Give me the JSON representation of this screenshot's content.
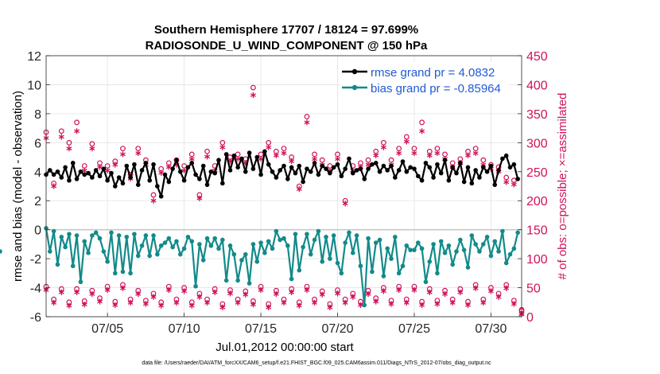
{
  "chart_data": {
    "type": "line",
    "title": "Southern Hemisphere 17707 / 18124 = 97.699%",
    "subtitle": "RADIOSONDE_U_WIND_COMPONENT @ 150 hPa",
    "xlabel": "Jul.01,2012 00:00:00 start",
    "ylabel": "rmse and bias (model - observation)",
    "ylabel_right": "# of obs: o=possible; ×=assimilated",
    "footnote": "data file: /Users/raeder/DAI/ATM_forcXX/CAM6_setup/f.e21.FHIST_BGC.f09_025.CAM6assim.011/Diags_NTrS_2012-07/obs_diag_output.nc",
    "x_range": [
      1,
      32
    ],
    "x_tick_values": [
      5,
      10,
      15,
      20,
      25,
      30
    ],
    "x_tick_labels": [
      "07/05",
      "07/10",
      "07/15",
      "07/20",
      "07/25",
      "07/30"
    ],
    "ylim": [
      -6,
      12
    ],
    "y_ticks": [
      -6,
      -4,
      -2,
      0,
      2,
      4,
      6,
      8,
      10,
      12
    ],
    "y2lim": [
      0,
      450
    ],
    "y2_ticks": [
      0,
      50,
      100,
      150,
      200,
      250,
      300,
      350,
      400,
      450
    ],
    "grid": true,
    "zero_line": true,
    "legend_position": "top-right",
    "colors": {
      "rmse": "#000000",
      "bias": "#138a8a",
      "obs": "#d0125a",
      "legend_text": "#1f5ad6",
      "grid": "#e3e3e3",
      "zero_line": "#c8c8c8"
    },
    "series": [
      {
        "name": "rmse grand pr = 4.0832",
        "color": "#000000",
        "x": [
          1.0,
          1.25,
          1.5,
          1.75,
          2.0,
          2.25,
          2.5,
          2.75,
          3.0,
          3.25,
          3.5,
          3.75,
          4.0,
          4.25,
          4.5,
          4.75,
          5.0,
          5.25,
          5.5,
          5.75,
          6.0,
          6.25,
          6.5,
          6.75,
          7.0,
          7.25,
          7.5,
          7.75,
          8.0,
          8.25,
          8.5,
          8.75,
          9.0,
          9.25,
          9.5,
          9.75,
          10.0,
          10.25,
          10.5,
          10.75,
          11.0,
          11.25,
          11.5,
          11.75,
          12.0,
          12.25,
          12.5,
          12.75,
          13.0,
          13.25,
          13.5,
          13.75,
          14.0,
          14.25,
          14.5,
          14.75,
          15.0,
          15.25,
          15.5,
          15.75,
          16.0,
          16.25,
          16.5,
          16.75,
          17.0,
          17.25,
          17.5,
          17.75,
          18.0,
          18.25,
          18.5,
          18.75,
          19.0,
          19.25,
          19.5,
          19.75,
          20.0,
          20.25,
          20.5,
          20.75,
          21.0,
          21.25,
          21.5,
          21.75,
          22.0,
          22.25,
          22.5,
          22.75,
          23.0,
          23.25,
          23.5,
          23.75,
          24.0,
          24.25,
          24.5,
          24.75,
          25.0,
          25.25,
          25.5,
          25.75,
          26.0,
          26.25,
          26.5,
          26.75,
          27.0,
          27.25,
          27.5,
          27.75,
          28.0,
          28.25,
          28.5,
          28.75,
          29.0,
          29.25,
          29.5,
          29.75,
          30.0,
          30.25,
          30.5,
          30.75,
          31.0,
          31.25,
          31.5,
          31.75
        ],
        "values": [
          3.8,
          4.1,
          3.8,
          4.0,
          3.6,
          4.3,
          3.4,
          4.6,
          3.5,
          4.0,
          3.8,
          3.9,
          3.6,
          4.1,
          3.7,
          4.2,
          3.4,
          3.9,
          3.0,
          3.6,
          3.2,
          4.4,
          3.6,
          4.5,
          3.1,
          4.1,
          4.6,
          3.4,
          4.5,
          3.0,
          2.3,
          3.8,
          3.3,
          4.2,
          4.8,
          4.0,
          3.4,
          4.3,
          4.6,
          3.8,
          3.5,
          4.4,
          3.1,
          4.0,
          3.9,
          4.8,
          3.2,
          5.2,
          4.1,
          5.1,
          4.3,
          4.9,
          4.0,
          5.3,
          4.2,
          5.0,
          3.8,
          5.4,
          4.5,
          4.0,
          3.6,
          4.1,
          4.4,
          3.5,
          4.3,
          3.9,
          4.4,
          3.3,
          4.2,
          4.0,
          4.6,
          3.8,
          4.4,
          4.2,
          3.9,
          4.3,
          4.5,
          3.7,
          4.2,
          4.9,
          3.9,
          4.1,
          4.2,
          3.5,
          4.2,
          4.5,
          4.6,
          4.0,
          4.4,
          4.1,
          4.4,
          3.6,
          4.1,
          4.7,
          4.0,
          4.3,
          4.2,
          3.7,
          3.4,
          4.6,
          4.3,
          3.6,
          4.5,
          3.9,
          4.8,
          3.4,
          4.3,
          3.9,
          4.6,
          3.3,
          4.3,
          3.2,
          4.1,
          3.6,
          4.3,
          4.0,
          4.4,
          3.1,
          4.1,
          4.9,
          5.1,
          4.3,
          4.5,
          3.5
        ],
        "x_display_note": "",
        "points_x": [
          1.0,
          1.25,
          1.5,
          1.75,
          2.0,
          2.25,
          2.5,
          2.75,
          3.0,
          3.25,
          3.5,
          3.75,
          4.0,
          4.25,
          4.5,
          4.75,
          5.0,
          5.25,
          5.5,
          5.75,
          6.0,
          6.25,
          6.5,
          6.75,
          7.0,
          7.25,
          7.5,
          7.75,
          8.0,
          8.25,
          8.5,
          8.75,
          9.0,
          9.25,
          9.5,
          9.75,
          10.0,
          10.25,
          10.5,
          10.75,
          11.0,
          11.25,
          11.5,
          11.75,
          12.0,
          12.25,
          12.5,
          12.75,
          13.0,
          13.25,
          13.5,
          13.75,
          14.0,
          14.25,
          14.5,
          14.75,
          15.0,
          15.25,
          15.5,
          15.75,
          16.0,
          16.25,
          16.5,
          16.75,
          17.0,
          17.25,
          17.5,
          17.75,
          18.0,
          18.25,
          18.5,
          18.75,
          19.0,
          19.25,
          19.5,
          19.75,
          20.0,
          20.25,
          20.5,
          20.75,
          21.0,
          21.25,
          21.5,
          21.75,
          22.0,
          22.25,
          22.5,
          22.75,
          23.0,
          23.25,
          23.5,
          23.75,
          24.0,
          24.25,
          24.5,
          24.75,
          25.0,
          25.25,
          25.5,
          25.75,
          26.0,
          26.25,
          26.5,
          26.75,
          27.0,
          27.25,
          27.5,
          27.75,
          28.0,
          28.25,
          28.5,
          28.75,
          29.0,
          29.25,
          29.5,
          29.75,
          30.0,
          30.25,
          30.5,
          30.75,
          31.0,
          31.25,
          31.5,
          31.75
        ]
      },
      {
        "name": "bias grand pr = -0.85964",
        "color": "#138a8a",
        "values": [
          0.1,
          -1.5,
          -0.1,
          -2.4,
          -0.5,
          -1.2,
          -0.3,
          -2.5,
          -0.4,
          -3.6,
          -0.8,
          -1.6,
          -0.4,
          -0.2,
          -0.6,
          -1.5,
          -2.2,
          -0.2,
          -3.0,
          -0.4,
          -2.9,
          -0.5,
          -3.0,
          -0.3,
          -1.8,
          -1.1,
          -0.4,
          -1.8,
          -0.4,
          -1.7,
          -1.1,
          -0.9,
          -0.6,
          -1.2,
          -0.8,
          -1.7,
          -1.3,
          -0.5,
          -0.8,
          -3.9,
          -1.0,
          -2.1,
          -0.6,
          -1.1,
          -0.6,
          -1.3,
          -0.7,
          -3.5,
          -1.1,
          -1.7,
          -3.5,
          -2.1,
          -1.7,
          -3.7,
          -1.0,
          -2.2,
          -0.9,
          -1.6,
          -0.8,
          -1.3,
          -0.1,
          -0.7,
          -0.6,
          -1.1,
          -3.4,
          -0.3,
          -2.8,
          -1.2,
          -0.3,
          -1.7,
          -0.7,
          -0.1,
          -2.2,
          -0.5,
          -2.0,
          -0.4,
          -2.3,
          -3.0,
          -0.9,
          -0.2,
          -1.6,
          -0.4,
          -2.5,
          -5.2,
          -0.6,
          -2.9,
          -0.9,
          -0.7,
          -3.2,
          -1.3,
          -2.0,
          -0.5,
          -3.0,
          -2.5,
          -1.1,
          -1.4,
          -1.4,
          -0.9,
          -1.3,
          -3.6,
          -2.2,
          -1.0,
          -3.0,
          -0.8,
          -1.6,
          -1.1,
          -2.4,
          -1.5,
          -0.7,
          -1.4,
          -2.6,
          -0.4,
          -1.0,
          -1.5,
          -1.0,
          -0.5,
          -1.8,
          -0.8,
          -1.5,
          -0.1,
          -2.3,
          -1.7,
          -1.3,
          -0.2,
          -1.5
        ]
      },
      {
        "name": "obs possible (circles, right axis)",
        "color": "#d0125a",
        "marker": "o",
        "note": "values in # of obs"
      },
      {
        "name": "obs assimilated (crosses, right axis)",
        "color": "#d0125a",
        "marker": "*",
        "note": "values in # of obs"
      }
    ],
    "obs_x": [
      1.0,
      1.5,
      2.0,
      2.5,
      3.0,
      3.5,
      4.0,
      4.5,
      5.0,
      5.5,
      6.0,
      6.5,
      7.0,
      7.5,
      8.0,
      8.5,
      9.0,
      9.5,
      10.0,
      10.5,
      11.0,
      11.5,
      12.0,
      12.5,
      13.0,
      13.5,
      14.0,
      14.5,
      15.0,
      15.5,
      16.0,
      16.5,
      17.0,
      17.5,
      18.0,
      18.5,
      19.0,
      19.5,
      20.0,
      20.5,
      21.0,
      21.5,
      22.0,
      22.5,
      23.0,
      23.5,
      24.0,
      24.5,
      25.0,
      25.5,
      26.0,
      26.5,
      27.0,
      27.5,
      28.0,
      28.5,
      29.0,
      29.5,
      30.0,
      30.5,
      31.0,
      31.5,
      32.0
    ],
    "obs_possible": [
      318,
      230,
      320,
      300,
      335,
      260,
      298,
      265,
      260,
      268,
      290,
      245,
      290,
      270,
      210,
      255,
      265,
      270,
      260,
      280,
      210,
      285,
      260,
      300,
      275,
      280,
      272,
      395,
      280,
      300,
      285,
      290,
      275,
      225,
      345,
      280,
      270,
      260,
      280,
      200,
      260,
      265,
      270,
      285,
      300,
      270,
      290,
      310,
      290,
      335,
      285,
      290,
      280,
      265,
      272,
      285,
      290,
      270,
      262,
      258,
      240,
      235,
      12
    ],
    "obs_assimilated": [
      308,
      225,
      310,
      290,
      320,
      252,
      290,
      258,
      252,
      262,
      280,
      238,
      282,
      262,
      200,
      248,
      258,
      262,
      252,
      272,
      204,
      276,
      252,
      292,
      268,
      272,
      265,
      382,
      272,
      292,
      278,
      282,
      268,
      220,
      335,
      272,
      262,
      252,
      272,
      195,
      252,
      258,
      262,
      278,
      292,
      262,
      282,
      302,
      282,
      320,
      278,
      282,
      272,
      258,
      265,
      278,
      282,
      262,
      255,
      250,
      232,
      228,
      5
    ],
    "obs_possible_low": [
      52,
      30,
      48,
      25,
      48,
      27,
      45,
      32,
      52,
      26,
      55,
      30,
      45,
      28,
      40,
      25,
      52,
      30,
      50,
      25,
      40,
      30,
      48,
      22,
      46,
      30,
      44,
      27,
      52,
      22,
      45,
      30,
      48,
      25,
      52,
      30,
      44,
      22,
      46,
      30,
      40,
      26,
      45,
      32,
      50,
      28,
      52,
      30,
      52,
      26,
      48,
      28,
      45,
      30,
      48,
      26,
      55,
      30,
      50,
      40,
      55,
      28,
      10
    ]
  }
}
